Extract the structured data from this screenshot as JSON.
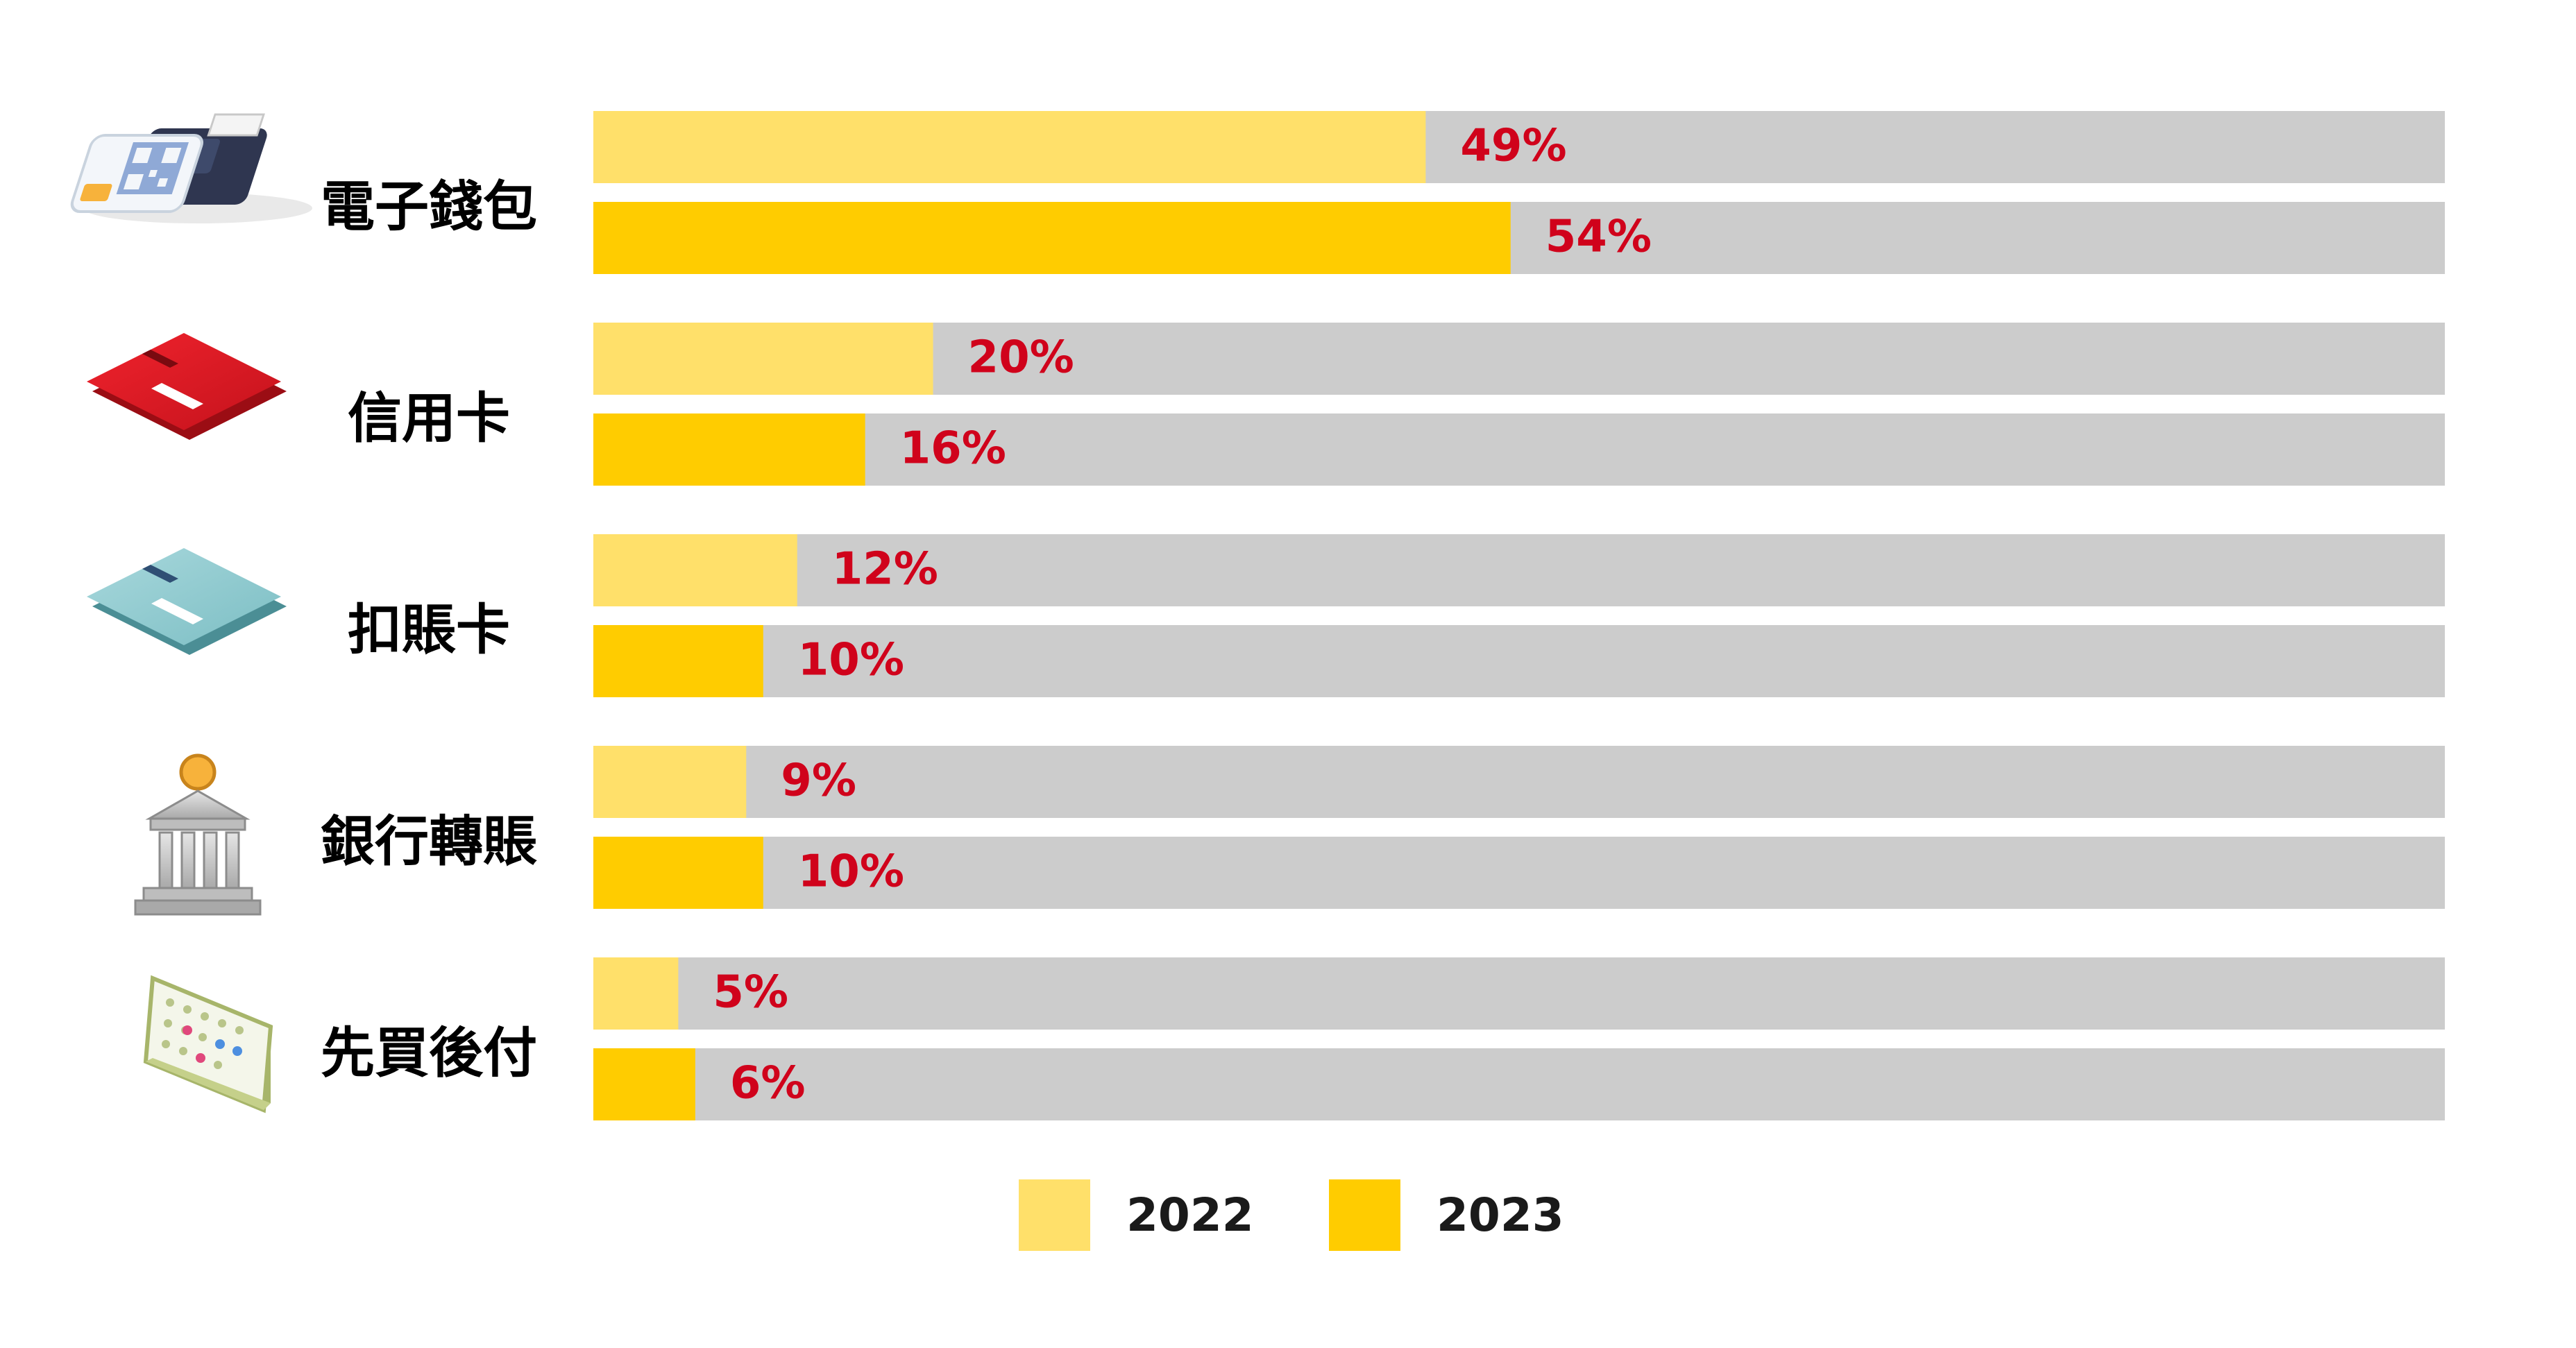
{
  "chart_data": {
    "type": "bar",
    "orientation": "horizontal",
    "categories": [
      "電子錢包",
      "信用卡",
      "扣賬卡",
      "銀行轉賬",
      "先買後付"
    ],
    "category_icons": [
      "payment-terminal-icon",
      "credit-card-icon",
      "debit-card-icon",
      "bank-icon",
      "calendar-icon"
    ],
    "series": [
      {
        "name": "2022",
        "values": [
          49,
          20,
          12,
          9,
          5
        ],
        "labels": [
          "49%",
          "20%",
          "12%",
          "9%",
          "5%"
        ],
        "color": "#FFE06A"
      },
      {
        "name": "2023",
        "values": [
          54,
          16,
          10,
          10,
          6
        ],
        "labels": [
          "54%",
          "16%",
          "10%",
          "10%",
          "6%"
        ],
        "color": "#FFCC00"
      }
    ],
    "xlim": [
      0,
      109
    ],
    "unit": "%",
    "track_color": "#CCCCCC",
    "label_color": "#D0021B",
    "legend_position": "bottom-center",
    "grid": false
  }
}
